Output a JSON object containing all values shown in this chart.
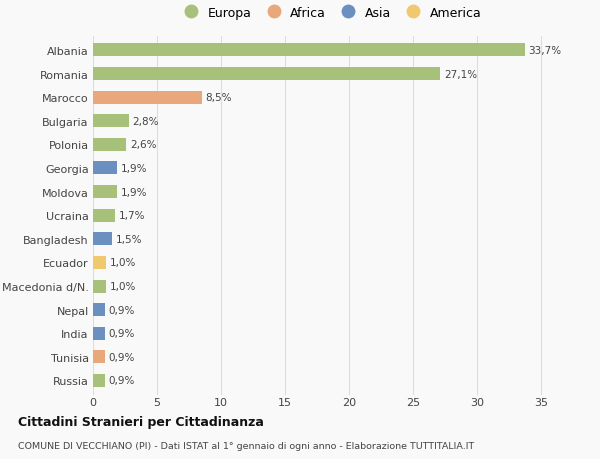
{
  "countries": [
    "Albania",
    "Romania",
    "Marocco",
    "Bulgaria",
    "Polonia",
    "Georgia",
    "Moldova",
    "Ucraina",
    "Bangladesh",
    "Ecuador",
    "Macedonia d/N.",
    "Nepal",
    "India",
    "Tunisia",
    "Russia"
  ],
  "values": [
    33.7,
    27.1,
    8.5,
    2.8,
    2.6,
    1.9,
    1.9,
    1.7,
    1.5,
    1.0,
    1.0,
    0.9,
    0.9,
    0.9,
    0.9
  ],
  "labels": [
    "33,7%",
    "27,1%",
    "8,5%",
    "2,8%",
    "2,6%",
    "1,9%",
    "1,9%",
    "1,7%",
    "1,5%",
    "1,0%",
    "1,0%",
    "0,9%",
    "0,9%",
    "0,9%",
    "0,9%"
  ],
  "continents": [
    "Europa",
    "Europa",
    "Africa",
    "Europa",
    "Europa",
    "Asia",
    "Europa",
    "Europa",
    "Asia",
    "America",
    "Europa",
    "Asia",
    "Asia",
    "Africa",
    "Europa"
  ],
  "continent_colors": {
    "Europa": "#a8c17a",
    "Africa": "#e8a87c",
    "Asia": "#6b8fbf",
    "America": "#f0c96e"
  },
  "legend_items": [
    "Europa",
    "Africa",
    "Asia",
    "America"
  ],
  "title": "Cittadini Stranieri per Cittadinanza",
  "subtitle": "COMUNE DI VECCHIANO (PI) - Dati ISTAT al 1° gennaio di ogni anno - Elaborazione TUTTITALIA.IT",
  "xlim": [
    0,
    37
  ],
  "xticks": [
    0,
    5,
    10,
    15,
    20,
    25,
    30,
    35
  ],
  "background_color": "#f9f9f9",
  "bar_height": 0.55,
  "grid_color": "#dddddd",
  "text_color": "#444444"
}
